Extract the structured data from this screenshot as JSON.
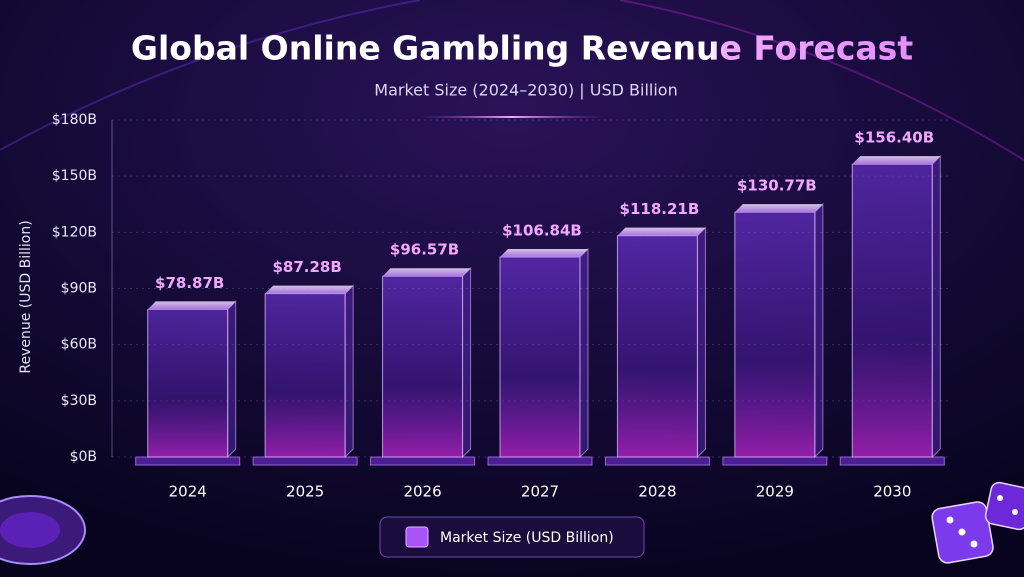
{
  "chart_data": {
    "type": "bar",
    "title": "Global Online Gambling Revenue Forecast",
    "subtitle": "Market Size (2024–2030) | USD Billion",
    "y_label": "Revenue (USD Billion)",
    "categories": [
      "2024",
      "2025",
      "2026",
      "2027",
      "2028",
      "2029",
      "2030"
    ],
    "series": [
      {
        "name": "Market Size (USD Billion)",
        "color": "#a855f7",
        "values": [
          78.87,
          87.28,
          96.57,
          106.84,
          118.21,
          130.77,
          156.4
        ],
        "value_labels": [
          "$78.87B",
          "$87.28B",
          "$96.57B",
          "$106.84B",
          "$118.21B",
          "$130.77B",
          "$156.40B"
        ]
      }
    ],
    "ylim": [
      0,
      180
    ],
    "yticks": [
      {
        "value": 0,
        "label": "$0B"
      },
      {
        "value": 30,
        "label": "$30B"
      },
      {
        "value": 60,
        "label": "$60B"
      },
      {
        "value": 90,
        "label": "$90B"
      },
      {
        "value": 120,
        "label": "$120B"
      },
      {
        "value": 150,
        "label": "$150B"
      },
      {
        "value": 180,
        "label": "$180B"
      }
    ],
    "grid": true
  }
}
